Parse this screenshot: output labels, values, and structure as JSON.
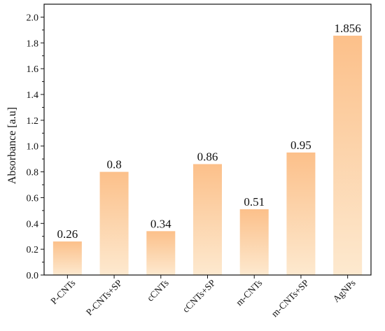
{
  "chart_data": {
    "type": "bar",
    "title": "",
    "xlabel": "",
    "ylabel": "Absorbance [a.u]",
    "categories": [
      "P-CNTs",
      "P-CNTs+SP",
      "cCNTs",
      "cCNTs+SP",
      "m-CNTs",
      "m-CNTs+SP",
      "AgNPs"
    ],
    "values": [
      0.26,
      0.8,
      0.34,
      0.86,
      0.51,
      0.95,
      1.856
    ],
    "value_labels": [
      "0.26",
      "0.8",
      "0.34",
      "0.86",
      "0.51",
      "0.95",
      "1.856"
    ],
    "ylim": [
      0,
      2.1
    ],
    "yticks": [
      0.0,
      0.2,
      0.4,
      0.6,
      0.8,
      1.0,
      1.2,
      1.4,
      1.6,
      1.8,
      2.0
    ],
    "ytick_labels": [
      "0.0",
      "0.2",
      "0.4",
      "0.6",
      "0.8",
      "1.0",
      "1.2",
      "1.4",
      "1.6",
      "1.8",
      "2.0"
    ],
    "grid": false,
    "legend": "none",
    "colors": {
      "bar_top": "#fcc08a",
      "bar_bottom": "#fde9cf",
      "axis": "#111111"
    }
  }
}
